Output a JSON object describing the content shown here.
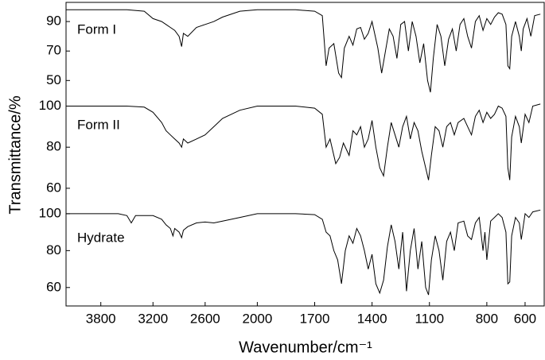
{
  "chart_data": [
    {
      "type": "line",
      "label": "Form I",
      "color": "#000000",
      "ylabel": "Transmittance/%",
      "ylim": [
        41,
        103
      ],
      "yticks": [
        50,
        70,
        90
      ],
      "x": [
        4200,
        3500,
        3300,
        3200,
        3100,
        3050,
        3000,
        2950,
        2900,
        2870,
        2850,
        2800,
        2700,
        2600,
        2500,
        2400,
        2200,
        2000,
        1800,
        1700,
        1660,
        1640,
        1625,
        1600,
        1575,
        1560,
        1545,
        1520,
        1500,
        1480,
        1460,
        1440,
        1420,
        1400,
        1370,
        1350,
        1330,
        1310,
        1290,
        1270,
        1250,
        1230,
        1210,
        1190,
        1170,
        1150,
        1130,
        1110,
        1095,
        1080,
        1060,
        1040,
        1020,
        1000,
        980,
        960,
        940,
        920,
        900,
        880,
        860,
        840,
        820,
        800,
        780,
        760,
        740,
        720,
        700,
        690,
        680,
        670,
        650,
        630,
        620,
        610,
        590,
        570,
        550,
        520
      ],
      "values": [
        98,
        98,
        97,
        92,
        90,
        88,
        86,
        84,
        80,
        73,
        82,
        80,
        86,
        88,
        90,
        93,
        97,
        98,
        98,
        97,
        94,
        60,
        72,
        75,
        55,
        52,
        72,
        80,
        74,
        85,
        86,
        78,
        82,
        90,
        72,
        55,
        70,
        85,
        80,
        65,
        88,
        90,
        70,
        90,
        80,
        62,
        75,
        50,
        42,
        65,
        88,
        80,
        60,
        78,
        85,
        70,
        88,
        92,
        80,
        72,
        90,
        94,
        84,
        92,
        88,
        93,
        96,
        95,
        88,
        60,
        58,
        80,
        90,
        80,
        70,
        85,
        92,
        80,
        94,
        95
      ]
    },
    {
      "type": "line",
      "label": "Form II",
      "color": "#000000",
      "ylim": [
        53,
        106
      ],
      "yticks": [
        60,
        80,
        100
      ],
      "x": [
        4200,
        3500,
        3300,
        3200,
        3100,
        3050,
        3000,
        2950,
        2900,
        2870,
        2850,
        2800,
        2700,
        2600,
        2500,
        2400,
        2200,
        2000,
        1800,
        1700,
        1660,
        1640,
        1620,
        1590,
        1570,
        1550,
        1520,
        1500,
        1480,
        1460,
        1440,
        1420,
        1400,
        1380,
        1360,
        1340,
        1320,
        1300,
        1280,
        1260,
        1240,
        1220,
        1200,
        1180,
        1160,
        1140,
        1120,
        1105,
        1090,
        1070,
        1050,
        1030,
        1010,
        990,
        970,
        950,
        920,
        900,
        880,
        860,
        840,
        820,
        800,
        780,
        760,
        740,
        720,
        700,
        690,
        680,
        670,
        650,
        630,
        620,
        600,
        580,
        560,
        520
      ],
      "values": [
        100,
        100,
        99.5,
        97,
        92,
        88,
        86,
        84,
        82,
        80,
        84,
        82,
        84,
        86,
        90,
        94,
        98,
        100,
        100,
        99,
        96,
        80,
        84,
        72,
        75,
        82,
        76,
        88,
        86,
        90,
        80,
        84,
        93,
        80,
        70,
        66,
        80,
        92,
        86,
        80,
        90,
        95,
        84,
        92,
        88,
        78,
        70,
        64,
        76,
        90,
        88,
        80,
        90,
        92,
        86,
        92,
        94,
        90,
        86,
        95,
        98,
        92,
        97,
        94,
        96,
        100,
        99,
        95,
        70,
        64,
        85,
        95,
        90,
        82,
        96,
        92,
        100,
        101
      ]
    },
    {
      "type": "line",
      "label": "Hydrate",
      "color": "#000000",
      "xlabel": "Wavenumber/cm⁻¹",
      "ylim": [
        50,
        106
      ],
      "yticks": [
        60,
        80,
        100
      ],
      "xlim": [
        4200,
        500
      ],
      "x_scale_break": 2000,
      "x_scale_factor": 2.2,
      "xticks": [
        3800,
        3200,
        2600,
        2000,
        1700,
        1400,
        1100,
        800,
        600
      ],
      "x": [
        4200,
        3600,
        3500,
        3450,
        3400,
        3200,
        3100,
        3050,
        3000,
        2970,
        2950,
        2900,
        2870,
        2850,
        2800,
        2700,
        2600,
        2500,
        2400,
        2200,
        2000,
        1800,
        1700,
        1660,
        1640,
        1620,
        1600,
        1580,
        1560,
        1540,
        1520,
        1500,
        1480,
        1460,
        1440,
        1420,
        1400,
        1380,
        1360,
        1340,
        1320,
        1300,
        1280,
        1260,
        1240,
        1220,
        1200,
        1180,
        1160,
        1140,
        1120,
        1105,
        1090,
        1070,
        1050,
        1030,
        1010,
        990,
        970,
        950,
        920,
        900,
        880,
        860,
        840,
        820,
        810,
        800,
        780,
        760,
        740,
        720,
        700,
        690,
        680,
        670,
        650,
        630,
        620,
        600,
        580,
        560,
        520
      ],
      "values": [
        100,
        100,
        99,
        95,
        99,
        99,
        97,
        94,
        92,
        88,
        92,
        90,
        87,
        91,
        93,
        95,
        95.5,
        95,
        96,
        98,
        100,
        100,
        99.5,
        97,
        90,
        88,
        80,
        75,
        62,
        80,
        88,
        84,
        92,
        88,
        80,
        70,
        78,
        62,
        57,
        64,
        82,
        94,
        85,
        70,
        90,
        58,
        80,
        92,
        70,
        85,
        60,
        56,
        75,
        88,
        80,
        64,
        85,
        90,
        80,
        95,
        96,
        88,
        86,
        95,
        98,
        80,
        90,
        75,
        96,
        98,
        100,
        98,
        90,
        62,
        63,
        88,
        98,
        95,
        86,
        100,
        98,
        101,
        102
      ]
    }
  ]
}
